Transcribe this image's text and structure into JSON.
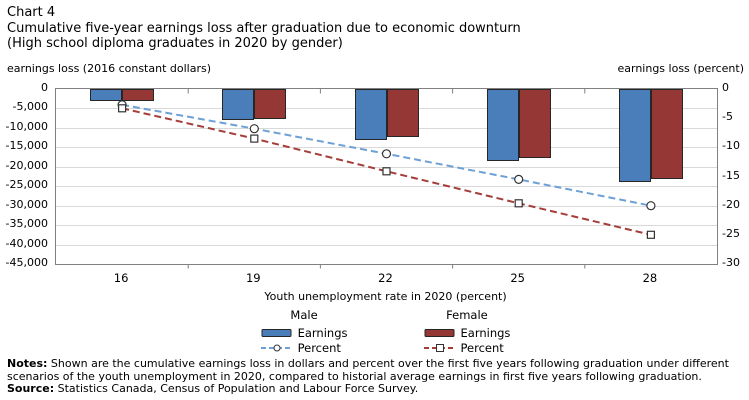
{
  "title": {
    "chart_number": "Chart 4",
    "line1": "Cumulative five-year earnings loss after graduation due to economic downturn",
    "line2": "(High school diploma graduates in 2020 by gender)"
  },
  "axis_units": {
    "left": "earnings loss (2016 constant dollars)",
    "right": "earnings loss (percent)"
  },
  "chart_data": {
    "type": "combo-bar-line",
    "categories": [
      "16",
      "19",
      "22",
      "25",
      "28"
    ],
    "x_axis": {
      "label": "Youth unemployment rate in 2020 (percent)"
    },
    "left_axis": {
      "label": "earnings loss (2016 constant dollars)",
      "min": -45000,
      "max": 0,
      "step": 5000,
      "ticks": [
        "0",
        "-5,000",
        "-10,000",
        "-15,000",
        "-20,000",
        "-25,000",
        "-30,000",
        "-35,000",
        "-40,000",
        "-45,000"
      ]
    },
    "right_axis": {
      "label": "earnings loss (percent)",
      "min": -30,
      "max": 0,
      "step": 5,
      "ticks": [
        "0",
        "-5",
        "-10",
        "-15",
        "-20",
        "-25",
        "-30"
      ]
    },
    "series": [
      {
        "name": "Male Earnings",
        "type": "bar",
        "axis": "left",
        "color": "#4A7EBB",
        "values": [
          -3000,
          -8000,
          -13000,
          -18500,
          -24000
        ]
      },
      {
        "name": "Female Earnings",
        "type": "bar",
        "axis": "left",
        "color": "#953735",
        "values": [
          -3000,
          -7700,
          -12300,
          -17800,
          -23200
        ]
      },
      {
        "name": "Male Percent",
        "type": "line",
        "marker": "circle",
        "axis": "right",
        "color": "#6DA0D6",
        "values": [
          -2.7,
          -6.8,
          -11.1,
          -15.5,
          -20.0
        ]
      },
      {
        "name": "Female Percent",
        "type": "line",
        "marker": "square",
        "axis": "right",
        "color": "#A53D3A",
        "values": [
          -3.3,
          -8.5,
          -14.1,
          -19.6,
          -25.0
        ]
      }
    ],
    "grid": true,
    "legend_position": "bottom"
  },
  "legend": {
    "male": {
      "header": "Male",
      "earnings": "Earnings",
      "percent": "Percent"
    },
    "female": {
      "header": "Female",
      "earnings": "Earnings",
      "percent": "Percent"
    }
  },
  "notes": {
    "label": "Notes:",
    "text": " Shown are the cumulative earnings loss in dollars and percent over the first five years following graduation under different scenarios of the youth unemployment in 2020, compared to historial average earnings in first five years following graduation."
  },
  "source": {
    "label": "Source:",
    "text": " Statistics Canada, Census of Population and Labour Force Survey."
  }
}
